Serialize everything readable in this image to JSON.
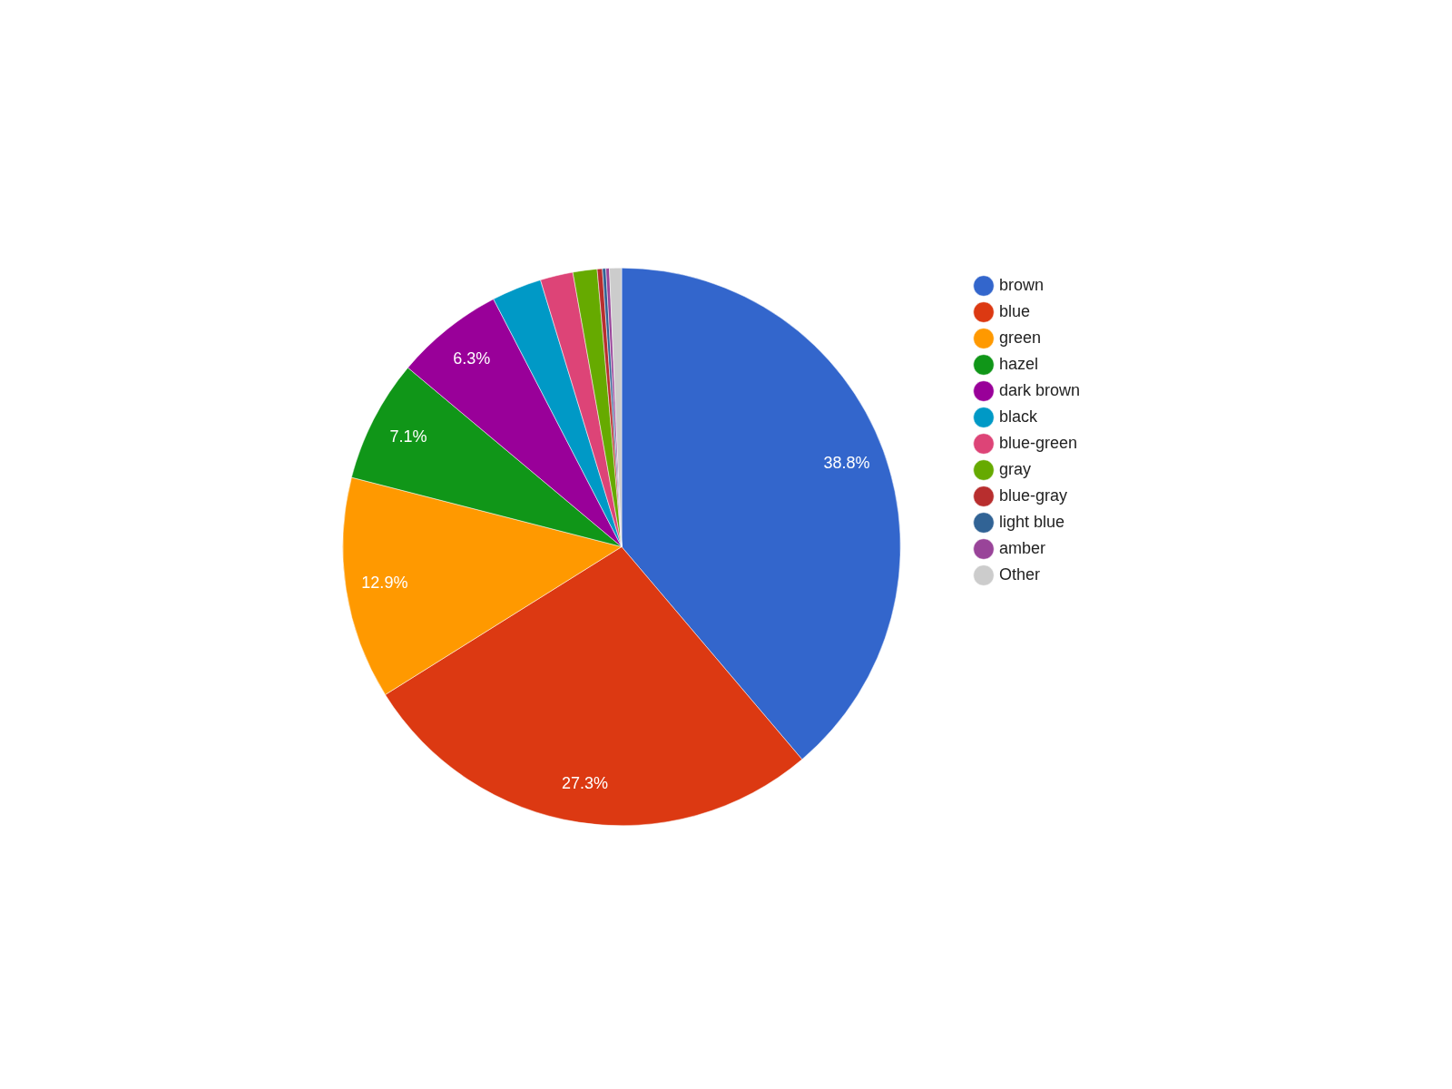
{
  "chart_data": {
    "type": "pie",
    "categories": [
      "brown",
      "blue",
      "green",
      "hazel",
      "dark brown",
      "black",
      "blue-green",
      "gray",
      "blue-gray",
      "light blue",
      "amber",
      "Other"
    ],
    "values": [
      38.8,
      27.3,
      12.9,
      7.1,
      6.3,
      2.9,
      1.9,
      1.4,
      0.3,
      0.2,
      0.2,
      0.7
    ],
    "colors": [
      "#3366cc",
      "#dc3912",
      "#ff9900",
      "#109618",
      "#990099",
      "#0099c6",
      "#dd4477",
      "#66aa00",
      "#b82e2e",
      "#316395",
      "#994499",
      "#cccccc"
    ],
    "value_labels": [
      "38.8%",
      "27.3%",
      "12.9%",
      "7.1%",
      "6.3%",
      null,
      null,
      null,
      null,
      null,
      null,
      null
    ],
    "legend": "right"
  }
}
